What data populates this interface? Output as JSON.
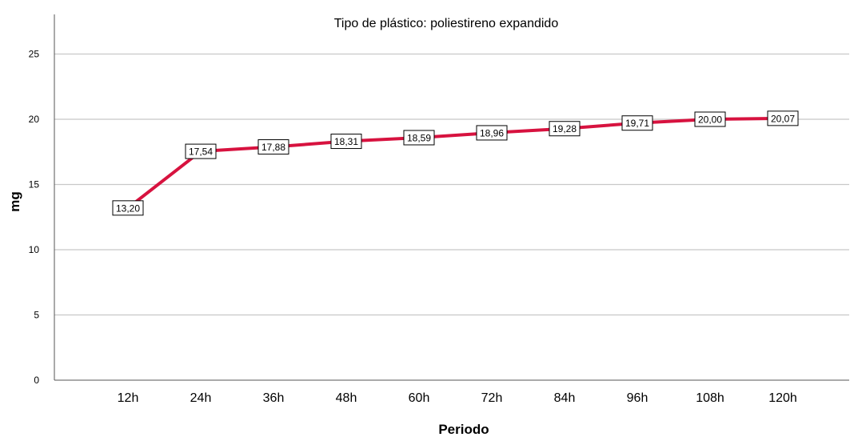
{
  "chart_data": {
    "type": "line",
    "title": "Tipo de plástico: poliestireno expandido",
    "xlabel": "Periodo",
    "ylabel": "mg",
    "categories": [
      "12h",
      "24h",
      "36h",
      "48h",
      "60h",
      "72h",
      "84h",
      "96h",
      "108h",
      "120h"
    ],
    "series": [
      {
        "values": [
          13.2,
          17.54,
          17.88,
          18.31,
          18.59,
          18.96,
          19.28,
          19.71,
          20.0,
          20.07
        ],
        "data_labels": [
          "13,20",
          "17,54",
          "17,88",
          "18,31",
          "18,59",
          "18,96",
          "19,28",
          "19,71",
          "20,00",
          "20,07"
        ],
        "color": "#d7123f"
      }
    ],
    "ylim": [
      0,
      27
    ],
    "yticks": [
      0,
      5,
      10,
      15,
      20,
      25
    ],
    "ytick_labels": [
      "0",
      "5",
      "10",
      "15",
      "20",
      "25"
    ],
    "grid": "horizontal",
    "legend": "none"
  }
}
